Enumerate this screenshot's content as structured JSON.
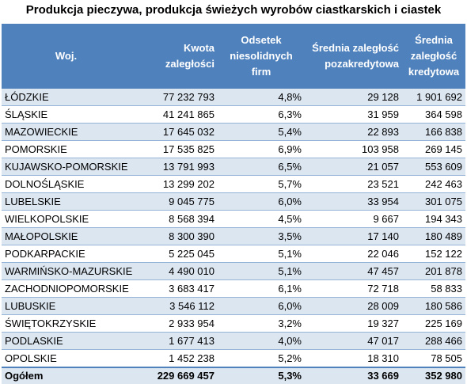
{
  "title": "Produkcja pieczywa, produkcja świeżych wyrobów ciastkarskich i ciastek",
  "headers": {
    "col1": [
      "Woj."
    ],
    "col2": [
      "Kwota",
      "zaległości"
    ],
    "col3": [
      "Odsetek",
      "niesolidnych",
      "firm"
    ],
    "col4": [
      "Średnia zaległość",
      "pozakredytowa"
    ],
    "col5": [
      "Średnia",
      "zaległość",
      "kredytowa"
    ]
  },
  "rows": [
    [
      "ŁÓDZKIE",
      "77 232 793",
      "4,8%",
      "29 128",
      "1 901 692"
    ],
    [
      "ŚLĄSKIE",
      "41 241 865",
      "6,3%",
      "31 959",
      "364 598"
    ],
    [
      "MAZOWIECKIE",
      "17 645 032",
      "5,4%",
      "22 893",
      "166 838"
    ],
    [
      "POMORSKIE",
      "17 535 825",
      "6,9%",
      "103 958",
      "269 145"
    ],
    [
      "KUJAWSKO-POMORSKIE",
      "13 791 993",
      "6,5%",
      "21 057",
      "553 609"
    ],
    [
      "DOLNOŚLĄSKIE",
      "13 299 202",
      "5,7%",
      "23 521",
      "242 463"
    ],
    [
      "LUBELSKIE",
      "9 045 775",
      "6,0%",
      "33 954",
      "301 075"
    ],
    [
      "WIELKOPOLSKIE",
      "8 568 394",
      "4,5%",
      "9 667",
      "194 343"
    ],
    [
      "MAŁOPOLSKIE",
      "8 300 390",
      "3,5%",
      "17 140",
      "180 489"
    ],
    [
      "PODKARPACKIE",
      "5 225 045",
      "5,1%",
      "22 046",
      "152 122"
    ],
    [
      "WARMIŃSKO-MAZURSKIE",
      "4 490 010",
      "5,1%",
      "47 457",
      "201 878"
    ],
    [
      "ZACHODNIOPOMORSKIE",
      "3 683 417",
      "6,1%",
      "72 718",
      "58 833"
    ],
    [
      "LUBUSKIE",
      "3 546 112",
      "6,0%",
      "28 009",
      "180 586"
    ],
    [
      "ŚWIĘTOKRZYSKIE",
      "2 933 954",
      "3,2%",
      "19 327",
      "225 169"
    ],
    [
      "PODLASKIE",
      "1 677 413",
      "4,0%",
      "47 017",
      "288 466"
    ],
    [
      "OPOLSKIE",
      "1 452 238",
      "5,2%",
      "18 310",
      "78 505"
    ]
  ],
  "total": [
    "Ogółem",
    "229 669 457",
    "5,3%",
    "33 669",
    "352 980"
  ],
  "colors": {
    "header_bg": "#4f81bd",
    "header_text": "#ffffff",
    "band_row": "#dce6f1",
    "row_divider": "#95b3d7"
  }
}
